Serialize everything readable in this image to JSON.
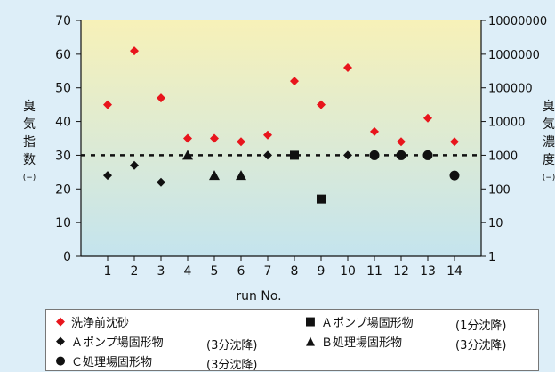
{
  "colors": {
    "background": "#ddeef8",
    "plot_top": "#f7f1b8",
    "plot_bottom": "#c4e4ee",
    "red": "#e8151c",
    "black": "#111111"
  },
  "y_left_label_chars": [
    "臭",
    "気",
    "指",
    "数"
  ],
  "y_left_unit": "(−)",
  "y_right_label_chars": [
    "臭",
    "気",
    "濃",
    "度"
  ],
  "y_right_unit": "(−)",
  "chart_data": {
    "type": "scatter",
    "x": [
      1,
      2,
      3,
      4,
      5,
      6,
      7,
      8,
      9,
      10,
      11,
      12,
      13,
      14
    ],
    "xlabel": "run No.",
    "xlim": [
      0,
      15
    ],
    "ylim": [
      0,
      70
    ],
    "yticks": [
      0,
      10,
      20,
      30,
      40,
      50,
      60,
      70
    ],
    "y2_log_scale": true,
    "y2lim": [
      1,
      10000000
    ],
    "y2ticks": [
      "1",
      "10",
      "100",
      "1000",
      "10000",
      "100000",
      "1000000",
      "10000000"
    ],
    "reference_line": 30,
    "series": [
      {
        "name": "洗浄前沈砂",
        "marker": "diamond",
        "color": "#e8151c",
        "points": [
          [
            1,
            45
          ],
          [
            2,
            61
          ],
          [
            3,
            47
          ],
          [
            4,
            35
          ],
          [
            5,
            35
          ],
          [
            6,
            34
          ],
          [
            7,
            36
          ],
          [
            8,
            52
          ],
          [
            9,
            45
          ],
          [
            10,
            56
          ],
          [
            11,
            37
          ],
          [
            12,
            34
          ],
          [
            13,
            41
          ],
          [
            14,
            34
          ]
        ]
      },
      {
        "name": "Ａポンプ場固形物",
        "note": "(3分沈降)",
        "marker": "diamond",
        "color": "#111111",
        "points": [
          [
            1,
            24
          ],
          [
            2,
            27
          ],
          [
            3,
            22
          ],
          [
            7,
            30
          ],
          [
            10,
            30
          ]
        ]
      },
      {
        "name": "Ｃ処理場固形物",
        "note": "(3分沈降)",
        "marker": "circle",
        "color": "#111111",
        "points": [
          [
            11,
            30
          ],
          [
            12,
            30
          ],
          [
            13,
            30
          ],
          [
            14,
            24
          ]
        ]
      },
      {
        "name": "Ａポンプ場固形物",
        "note": "(1分沈降)",
        "marker": "square",
        "color": "#111111",
        "points": [
          [
            8,
            30
          ],
          [
            9,
            17
          ]
        ]
      },
      {
        "name": "Ｂ処理場固形物",
        "note": "(3分沈降)",
        "marker": "triangle",
        "color": "#111111",
        "points": [
          [
            4,
            30
          ],
          [
            5,
            24
          ],
          [
            6,
            24
          ]
        ]
      }
    ]
  },
  "legend_symbols": [
    "◆",
    "◆",
    "●",
    "■",
    "▲"
  ]
}
